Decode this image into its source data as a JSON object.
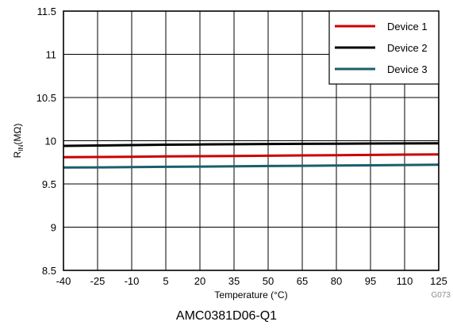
{
  "chart_data": {
    "type": "line",
    "xlabel": "Temperature (°C)",
    "ylabel_main": "R",
    "ylabel_sub": "IN",
    "ylabel_unit": "(MΩ)",
    "xlim": [
      -40,
      125
    ],
    "ylim": [
      8.5,
      11.5
    ],
    "x_ticks": [
      -40,
      -25,
      -10,
      5,
      20,
      35,
      50,
      65,
      80,
      95,
      110,
      125
    ],
    "x_tick_labels": [
      "-40",
      "-25",
      "-10",
      "5",
      "20",
      "35",
      "50",
      "65",
      "80",
      "95",
      "110",
      "125"
    ],
    "y_ticks": [
      8.5,
      9,
      9.5,
      10,
      10.5,
      11,
      11.5
    ],
    "y_tick_labels": [
      "8.5",
      "9",
      "9.5",
      "10",
      "10.5",
      "11",
      "11.5"
    ],
    "grid": true,
    "legend_position": "top-right",
    "series": [
      {
        "name": "Device 1",
        "color": "#cc0000",
        "x": [
          -40,
          -25,
          -10,
          5,
          20,
          35,
          50,
          65,
          80,
          95,
          110,
          125
        ],
        "y": [
          9.81,
          9.812,
          9.815,
          9.818,
          9.821,
          9.824,
          9.827,
          9.83,
          9.833,
          9.836,
          9.839,
          9.842
        ]
      },
      {
        "name": "Device 2",
        "color": "#000000",
        "x": [
          -40,
          -25,
          -10,
          5,
          20,
          35,
          50,
          65,
          80,
          95,
          110,
          125
        ],
        "y": [
          9.94,
          9.945,
          9.95,
          9.954,
          9.957,
          9.96,
          9.962,
          9.964,
          9.966,
          9.968,
          9.969,
          9.97
        ]
      },
      {
        "name": "Device 3",
        "color": "#1a5e6e",
        "x": [
          -40,
          -25,
          -10,
          5,
          20,
          35,
          50,
          65,
          80,
          95,
          110,
          125
        ],
        "y": [
          9.69,
          9.692,
          9.695,
          9.698,
          9.701,
          9.704,
          9.707,
          9.71,
          9.713,
          9.716,
          9.719,
          9.722
        ]
      }
    ],
    "figure_id": "G073"
  },
  "caption": "AMC0381D06-Q1"
}
